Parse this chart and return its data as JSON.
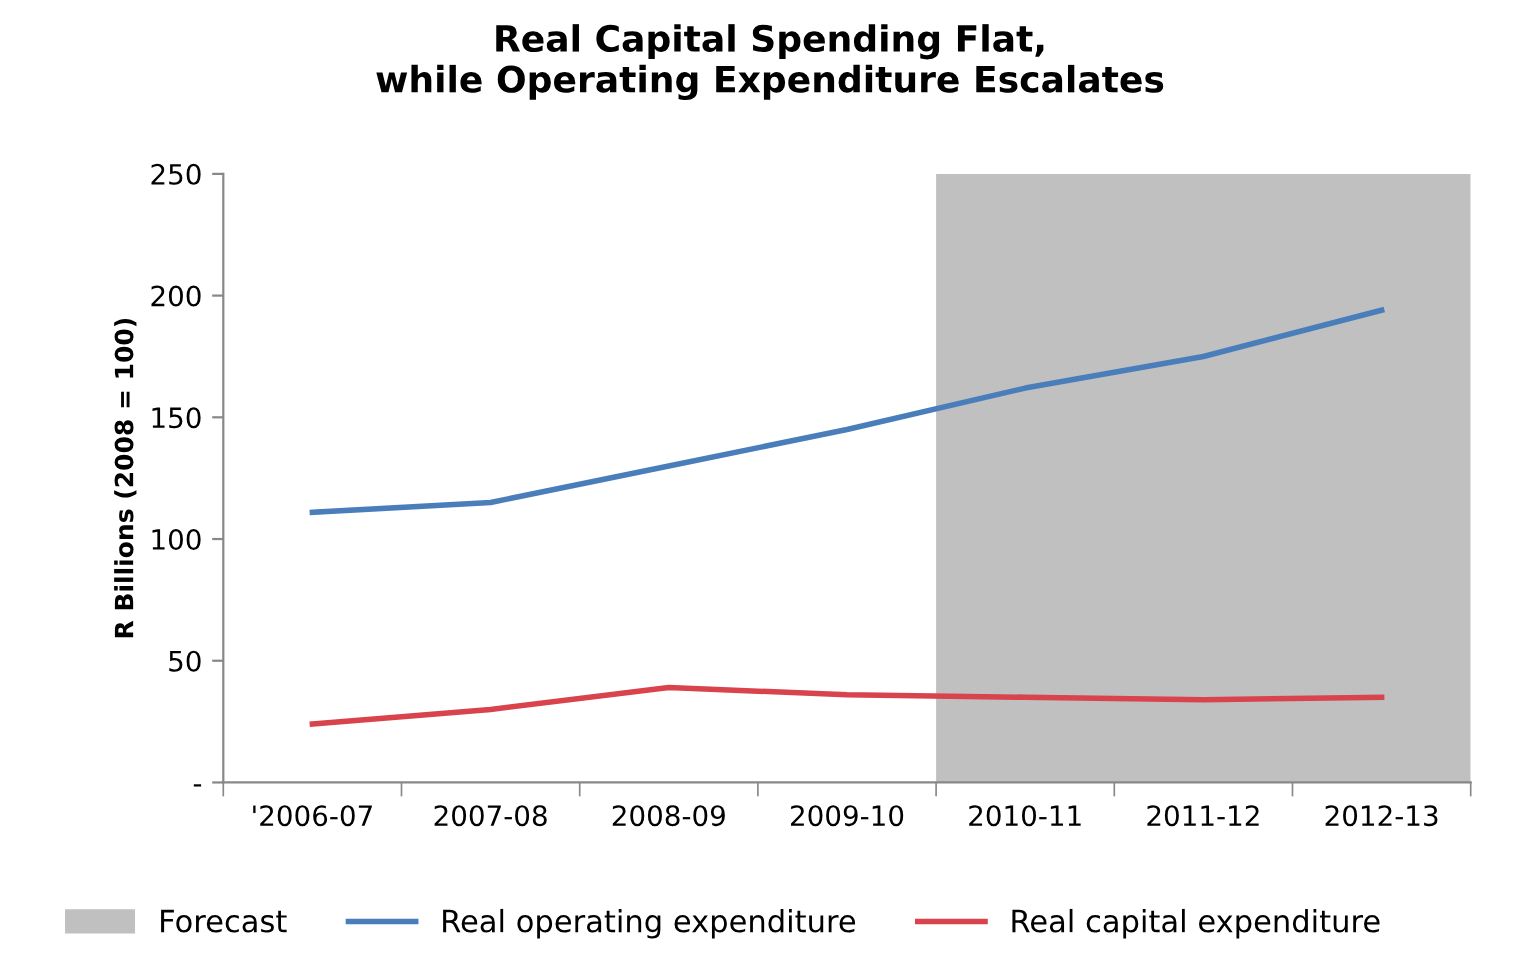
{
  "chart_data": {
    "type": "line",
    "title": "Real Capital Spending Flat,\nwhile Operating Expenditure Escalates",
    "ylabel": "R Billions (2008 = 100)",
    "categories": [
      "'2006-07",
      "2007-08",
      "2008-09",
      "2009-10",
      "2010-11",
      "2011-12",
      "2012-13"
    ],
    "series": [
      {
        "name": "Real operating expenditure",
        "color": "#4a7ebb",
        "values": [
          111,
          115,
          130,
          145,
          162,
          175,
          194
        ]
      },
      {
        "name": "Real capital expenditure",
        "color": "#d9434b",
        "values": [
          24,
          30,
          39,
          36,
          35,
          34,
          35
        ]
      }
    ],
    "ylim": [
      0,
      250
    ],
    "yticks": [
      {
        "value": 0,
        "label": "-"
      },
      50,
      100,
      150,
      200,
      250
    ],
    "bands": [
      {
        "axis": "x",
        "from": "2010-11",
        "to": "2012-13",
        "label": "Forecast",
        "color": "#c0c0c0"
      }
    ],
    "grid": false,
    "legend": "bottom",
    "marker": "none",
    "line_style": "solid"
  }
}
